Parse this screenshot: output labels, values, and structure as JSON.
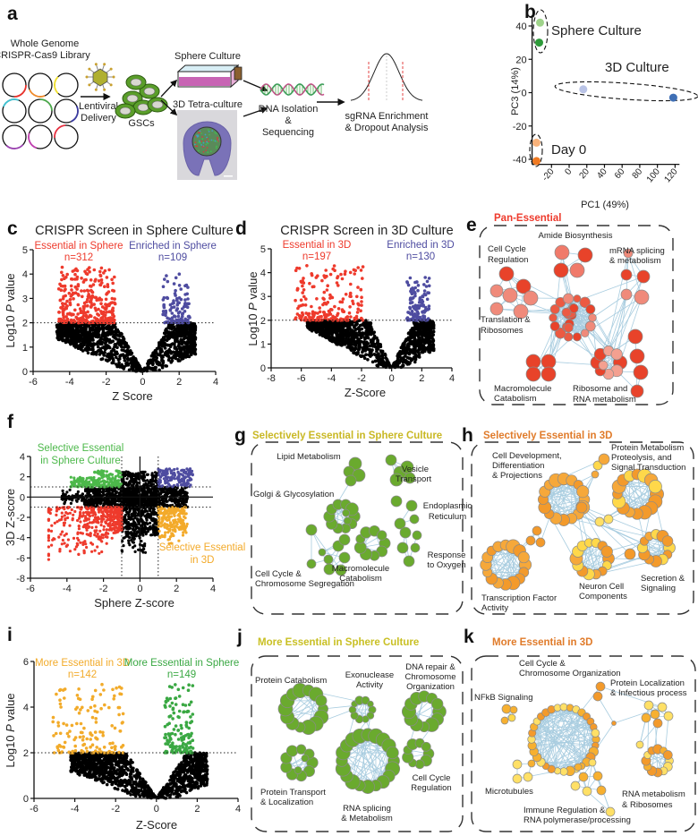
{
  "panel_labels": {
    "a": "a",
    "b": "b",
    "c": "c",
    "d": "d",
    "e": "e",
    "f": "f",
    "g": "g",
    "h": "h",
    "i": "i",
    "j": "j",
    "k": "k"
  },
  "panel_a": {
    "library_title": [
      "Whole Genome",
      "CRISPR-Cas9 Library"
    ],
    "delivery": [
      "Lentiviral",
      "Delivery"
    ],
    "cells": "GSCs",
    "sphere_culture": "Sphere Culture",
    "tetra_culture": "3D Tetra-culture",
    "dna": [
      "DNA Isolation",
      "&",
      "Sequencing"
    ],
    "analysis": [
      "sgRNA Enrichment",
      "& Dropout Analysis"
    ]
  },
  "networks": {
    "e": {
      "title": "Pan-Essential",
      "color": "#ee3a2c",
      "labels": [
        "Amide Biosynthesis",
        "Cell Cycle",
        "Regulation",
        "mRNA splicing",
        "& metabolism",
        "Translation &",
        "Ribosomes",
        "Macromolecule",
        "Catabolism",
        "Ribosome and",
        "RNA metabolism"
      ]
    },
    "g": {
      "title": "Selectively Essential in Sphere Culture",
      "color": "#c9b824",
      "labels": [
        "Lipid Metabolism",
        "Vesicle",
        "Transport",
        "Golgi & Glycosylation",
        "Endoplasmic",
        "Reticulum",
        "Response",
        "to Oxygen",
        "Cell Cycle &",
        "Chromosome Segregation",
        "Macromolecule",
        "Catabolism"
      ]
    },
    "h": {
      "title": "Selectively Essential in 3D",
      "color": "#e07b2a",
      "labels": [
        "Cell Development,",
        "Differentiation",
        "& Projections",
        "Protein Metabolism",
        "Proteolysis, and",
        "Signal Transduction",
        "Transcription Factor",
        "Activity",
        "Neuron Cell",
        "Components",
        "Secretion &",
        "Signaling"
      ]
    },
    "j": {
      "title": "More Essential in Sphere Culture",
      "color": "#c9c024",
      "labels": [
        "Protein Catabolism",
        "Exonuclease",
        "Activity",
        "DNA repair &",
        "Chromosome",
        "Organization",
        "Protein Transport",
        "& Localization",
        "RNA splicing",
        "& Metabolism",
        "Cell Cycle",
        "Regulation"
      ]
    },
    "k": {
      "title": "More Essential in 3D",
      "color": "#e07b2a",
      "labels": [
        "Cell Cycle &",
        "Chromosome Organization",
        "Protein Localization",
        "& Infectious process",
        "NFkB Signaling",
        "Microtubules",
        "Immune Regulation &",
        "RNA polymerase/processing",
        "RNA metabolism",
        "& Ribosomes"
      ]
    }
  },
  "chart_data": [
    {
      "panel": "b",
      "type": "scatter",
      "xlabel": "PC1 (49%)",
      "ylabel": "PC3 (14%)",
      "xlim": [
        -42,
        125
      ],
      "ylim": [
        -43,
        45
      ],
      "xticks": [
        "-20",
        "0",
        "20",
        "40",
        "60",
        "80",
        "100",
        "120"
      ],
      "xtick_values": [
        -20,
        0,
        20,
        40,
        60,
        80,
        100,
        120
      ],
      "yticks": [
        "40",
        "20",
        "0",
        "-20",
        "-40"
      ],
      "ytick_values": [
        40,
        20,
        0,
        -20,
        -40
      ],
      "series": [
        {
          "name": "Sphere Culture",
          "points": [
            [
              -33,
              42
            ],
            [
              -34,
              30
            ]
          ],
          "colors": [
            "#9fd38a",
            "#2e9a3a"
          ]
        },
        {
          "name": "3D Culture",
          "points": [
            [
              16,
              2
            ],
            [
              118,
              -3
            ]
          ],
          "colors": [
            "#b9c3e6",
            "#3f6fb5"
          ]
        },
        {
          "name": "Day 0",
          "points": [
            [
              -37,
              -30
            ],
            [
              -37,
              -41
            ]
          ],
          "colors": [
            "#f9b27a",
            "#f07a22"
          ]
        }
      ]
    },
    {
      "panel": "c",
      "type": "scatter",
      "title": "CRISPR Screen in Sphere Culture",
      "xlabel": "Z Score",
      "ylabel": [
        "Log10 ",
        "P",
        " value"
      ],
      "xlim": [
        -6,
        4
      ],
      "ylim": [
        0,
        5
      ],
      "threshold": 2,
      "xticks": [
        "-6",
        "-4",
        "-2",
        "0",
        "2",
        "4"
      ],
      "xtick_values": [
        -6,
        -4,
        -2,
        0,
        2,
        4
      ],
      "yticks": [
        "0",
        "1",
        "2",
        "3",
        "4",
        "5"
      ],
      "ytick_values": [
        0,
        1,
        2,
        3,
        4,
        5
      ],
      "background": {
        "color": "#000000",
        "left_z_max": 4.7,
        "right_z_max": 2.9
      },
      "groups": [
        {
          "label": "Essential in Sphere",
          "n": "n=312",
          "count": 312,
          "color": "#ee3a2c",
          "z_range": [
            -4.6,
            -1.5
          ],
          "p_range": [
            2,
            4.3
          ]
        },
        {
          "label": "Enriched in Sphere",
          "n": "n=109",
          "count": 109,
          "color": "#4e4ca0",
          "z_range": [
            1.1,
            2.6
          ],
          "p_range": [
            2,
            4
          ]
        }
      ]
    },
    {
      "panel": "d",
      "type": "scatter",
      "title": "CRISPR Screen in 3D Culture",
      "xlabel": "Z-Score",
      "ylabel": [
        "Log10 ",
        "P",
        " value"
      ],
      "xlim": [
        -8,
        4
      ],
      "ylim": [
        0,
        5
      ],
      "threshold": 2,
      "xticks": [
        "-8",
        "-6",
        "-4",
        "-2",
        "0",
        "2",
        "4"
      ],
      "xtick_values": [
        -8,
        -6,
        -4,
        -2,
        0,
        2,
        4
      ],
      "yticks": [
        "0",
        "1",
        "2",
        "3",
        "4",
        "5"
      ],
      "ytick_values": [
        0,
        1,
        2,
        3,
        4,
        5
      ],
      "background": {
        "color": "#000000",
        "left_z_max": 5.6,
        "right_z_max": 2.8
      },
      "groups": [
        {
          "label": "Essential in 3D",
          "n": "n=197",
          "count": 197,
          "color": "#ee3a2c",
          "z_range": [
            -6.4,
            -1.8
          ],
          "p_range": [
            2,
            4.3
          ]
        },
        {
          "label": "Enriched in 3D",
          "n": "n=130",
          "count": 130,
          "color": "#4e4ca0",
          "z_range": [
            1.0,
            2.5
          ],
          "p_range": [
            2,
            3.8
          ]
        }
      ]
    },
    {
      "panel": "f",
      "type": "scatter",
      "xlabel": "Sphere Z-score",
      "ylabel": "3D Z-score",
      "xlim": [
        -6,
        4
      ],
      "ylim": [
        -8,
        4
      ],
      "thresholds": [
        -1,
        1
      ],
      "xticks": [
        "-6",
        "-4",
        "-2",
        "0",
        "2",
        "4"
      ],
      "xtick_values": [
        -6,
        -4,
        -2,
        0,
        2,
        4
      ],
      "yticks": [
        "-8",
        "-6",
        "-4",
        "-2",
        "0",
        "2",
        "4"
      ],
      "ytick_values": [
        -8,
        -6,
        -4,
        -2,
        0,
        2,
        4
      ],
      "groups": [
        {
          "label": "Selective Essential",
          "label2": "in Sphere Culture",
          "color": "#4cb84a",
          "x_range": [
            -3.8,
            -1
          ],
          "y_range": [
            1,
            2.6
          ]
        },
        {
          "label": "Selective Essential",
          "label2": "in 3D",
          "color": "#f3aa2a",
          "x_range": [
            1,
            2.6
          ],
          "y_range": [
            -4.7,
            -1
          ]
        },
        {
          "label": "",
          "color": "#4e4ca0",
          "x_range": [
            1,
            2.9
          ],
          "y_range": [
            1,
            2.8
          ]
        },
        {
          "label": "",
          "color": "#ee3a2c",
          "x_range": [
            -5,
            -1
          ],
          "y_range": [
            -6.6,
            -1
          ]
        }
      ]
    },
    {
      "panel": "i",
      "type": "scatter",
      "xlabel": "Z-Score",
      "ylabel": [
        "Log10 ",
        "P",
        " value"
      ],
      "xlim": [
        -6,
        4
      ],
      "ylim": [
        0,
        6
      ],
      "threshold": 2,
      "xticks": [
        "-6",
        "-4",
        "-2",
        "0",
        "2",
        "4"
      ],
      "xtick_values": [
        -6,
        -4,
        -2,
        0,
        2,
        4
      ],
      "yticks": [
        "0",
        "2",
        "4",
        "6"
      ],
      "ytick_values": [
        0,
        2,
        4,
        6
      ],
      "background": {
        "color": "#000000",
        "left_z_max": 4.2,
        "right_z_max": 2.5
      },
      "groups": [
        {
          "label": "More Essential in 3D",
          "n": "n=142",
          "count": 142,
          "color": "#f2ab2a",
          "z_range": [
            -5.1,
            -1.6
          ],
          "p_range": [
            2,
            5
          ]
        },
        {
          "label": "More Essential in Sphere",
          "n": "n=149",
          "count": 149,
          "color": "#3aa843",
          "z_range": [
            0.4,
            1.8
          ],
          "p_range": [
            2,
            5
          ]
        }
      ]
    }
  ]
}
